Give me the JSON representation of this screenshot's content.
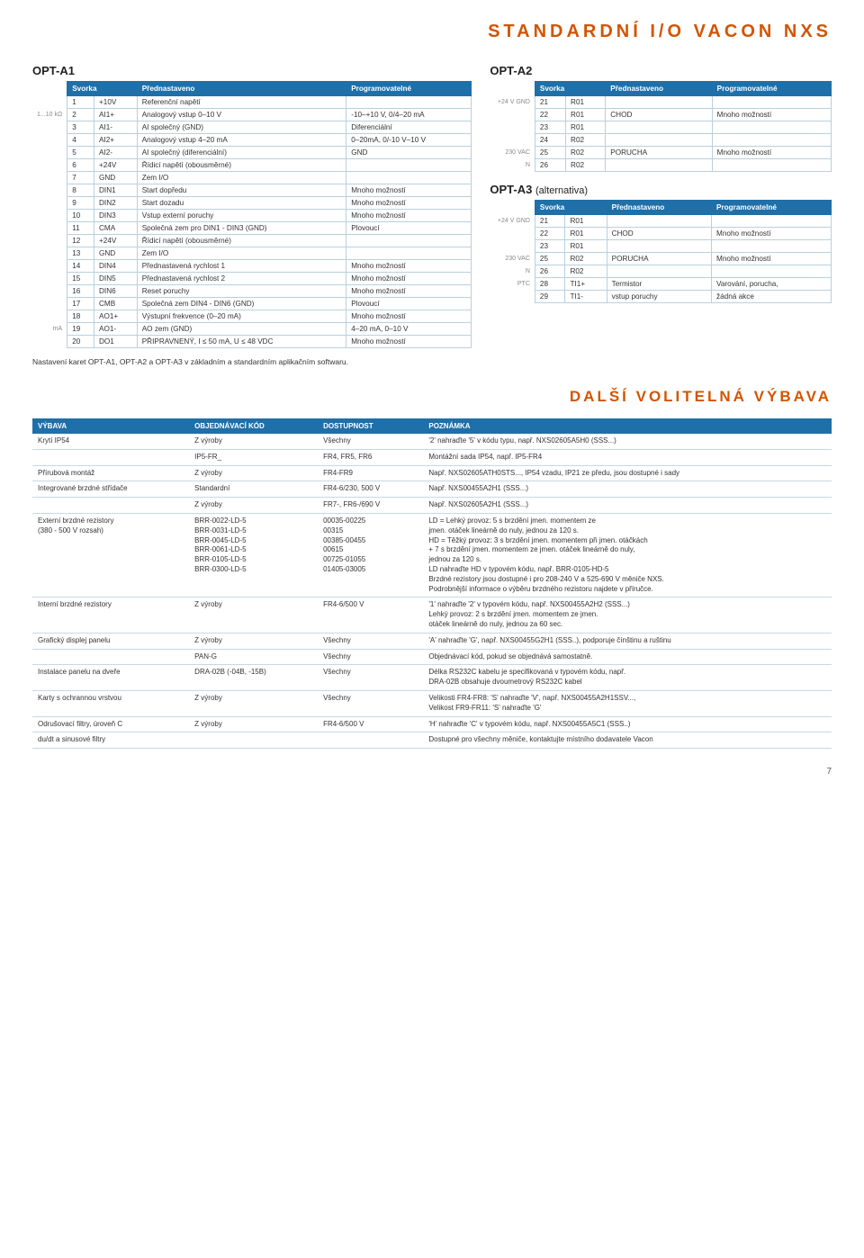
{
  "page_title": "STANDARDNÍ I/O VACON NXS",
  "note": "Nastavení karet OPT-A1, OPT-A2 a OPT-A3 v základním a standardním aplikačním softwaru.",
  "section2_title": "DALŠÍ VOLITELNÁ VÝBAVA",
  "page_number": "7",
  "colors": {
    "accent": "#d35400",
    "header_bg": "#1f6fa8",
    "border": "#b9d0de"
  },
  "opt_a1": {
    "label": "OPT-A1",
    "side_note_1": "1...10 kΩ",
    "side_note_2": "mA",
    "headers": [
      "Svorka",
      "Přednastaveno",
      "Programovatelné"
    ],
    "rows": [
      [
        "1",
        "+10V",
        "Referenční napětí",
        ""
      ],
      [
        "2",
        "AI1+",
        "Analogový vstup 0–10 V",
        "-10–+10 V, 0/4–20 mA"
      ],
      [
        "3",
        "AI1-",
        "AI společný (GND)",
        "Diferenciální"
      ],
      [
        "4",
        "AI2+",
        "Analogový vstup 4–20 mA",
        "0–20mA, 0/-10 V–10 V"
      ],
      [
        "5",
        "AI2-",
        "AI společný (diferenciální)",
        "GND"
      ],
      [
        "6",
        "+24V",
        "Řídicí napětí (obousměrné)",
        ""
      ],
      [
        "7",
        "GND",
        "Zem I/O",
        ""
      ],
      [
        "8",
        "DIN1",
        "Start dopředu",
        "Mnoho možností"
      ],
      [
        "9",
        "DIN2",
        "Start dozadu",
        "Mnoho možností"
      ],
      [
        "10",
        "DIN3",
        "Vstup externí poruchy",
        "Mnoho možností"
      ],
      [
        "11",
        "CMA",
        "Společná zem pro DIN1 - DIN3 (GND)",
        "Plovoucí"
      ],
      [
        "12",
        "+24V",
        "Řídicí napětí (obousměrné)",
        ""
      ],
      [
        "13",
        "GND",
        "Zem I/O",
        ""
      ],
      [
        "14",
        "DIN4",
        "Přednastavená rychlost 1",
        "Mnoho možností"
      ],
      [
        "15",
        "DIN5",
        "Přednastavená rychlost 2",
        "Mnoho možností"
      ],
      [
        "16",
        "DIN6",
        "Reset poruchy",
        "Mnoho možností"
      ],
      [
        "17",
        "CMB",
        "Společná zem DIN4 - DIN6 (GND)",
        "Plovoucí"
      ],
      [
        "18",
        "AO1+",
        "Výstupní frekvence (0–20 mA)",
        "Mnoho možností"
      ],
      [
        "19",
        "AO1-",
        "AO zem (GND)",
        "4–20 mA, 0–10 V"
      ],
      [
        "20",
        "DO1",
        "PŘIPRAVNENÝ, I ≤ 50 mA, U ≤ 48 VDC",
        "Mnoho možností"
      ]
    ]
  },
  "opt_a2": {
    "label": "OPT-A2",
    "conn1": "+24 V  GND",
    "conn2": "230 VAC",
    "conn3": "N",
    "headers": [
      "Svorka",
      "Přednastaveno",
      "Programovatelné"
    ],
    "rows": [
      [
        "21",
        "R01",
        "",
        ""
      ],
      [
        "22",
        "R01",
        "CHOD",
        "Mnoho možností"
      ],
      [
        "23",
        "R01",
        "",
        ""
      ],
      [
        "24",
        "R02",
        "",
        ""
      ],
      [
        "25",
        "R02",
        "PORUCHA",
        "Mnoho možností"
      ],
      [
        "26",
        "R02",
        "",
        ""
      ]
    ]
  },
  "opt_a3": {
    "label": "OPT-A3",
    "alt": "(alternativa)",
    "conn1": "+24 V  GND",
    "conn2": "230 VAC",
    "conn3": "N",
    "conn4": "PTC",
    "headers": [
      "Svorka",
      "Přednastaveno",
      "Programovatelné"
    ],
    "rows": [
      [
        "21",
        "R01",
        "",
        ""
      ],
      [
        "22",
        "R01",
        "CHOD",
        "Mnoho možností"
      ],
      [
        "23",
        "R01",
        "",
        ""
      ],
      [
        "25",
        "R02",
        "PORUCHA",
        "Mnoho možností"
      ],
      [
        "26",
        "R02",
        "",
        ""
      ],
      [
        "28",
        "TI1+",
        "Termistor",
        "Varování, porucha,"
      ],
      [
        "29",
        "TI1-",
        "vstup poruchy",
        "žádná akce"
      ]
    ]
  },
  "accessories": {
    "headers": [
      "VÝBAVA",
      "OBJEDNÁVACÍ KÓD",
      "DOSTUPNOST",
      "POZNÁMKA"
    ],
    "rows": [
      [
        "Krytí IP54",
        "Z výroby",
        "Všechny",
        "'2' nahraďte '5' v kódu typu, např. NXS02605A5H0 (SSS...)"
      ],
      [
        "",
        "IP5-FR_",
        "FR4, FR5, FR6",
        "Montážní sada IP54, např. IP5-FR4"
      ],
      [
        "Přírubová montáž",
        "Z výroby",
        "FR4-FR9",
        "Např.  NXS02605ATH0STS..., IP54 vzadu, IP21 ze předu, jsou dostupné i sady"
      ],
      [
        "Integrované brzdné střídače",
        "Standardní",
        "FR4-6/230, 500 V",
        "Např. NXS00455A2H1 (SSS...)"
      ],
      [
        "",
        "Z výroby",
        "FR7-, FR6-/690 V",
        "Např. NXS02605A2H1 (SSS...)"
      ],
      [
        "Externí brzdné rezistory\n(380 - 500 V rozsah)",
        "BRR-0022-LD-5\nBRR-0031-LD-5\nBRR-0045-LD-5\nBRR-0061-LD-5\nBRR-0105-LD-5\nBRR-0300-LD-5",
        "00035-00225\n00315\n00385-00455\n00615\n00725-01055\n01405-03005",
        "LD = Lehký provoz:  5 s brzdění jmen. momentem ze\n   jmen. otáček lineárně do nuly, jednou za 120 s.\nHD = Těžký provoz: 3 s brzdění jmen. momentem při jmen. otáčkách\n   + 7 s brzdění jmen. momentem ze jmen. otáček lineárně do nuly,\n   jednou za 120 s.\nLD nahraďte HD v typovém kódu, např. BRR-0105-HD-5\nBrzdné rezistory jsou dostupné i pro 208-240 V a 525-690 V měniče NXS.\nPodrobnější informace o výběru brzdného rezistoru najdete v příručce."
      ],
      [
        "Interní brzdné rezistory",
        "Z výroby",
        "FR4-6/500 V",
        "'1' nahraďte '2' v typovém kódu, např. NXS00455A2H2 (SSS...)\nLehký provoz:  2 s brzdění jmen. momentem ze jmen.\n   otáček lineárně do nuly, jednou za 60 sec."
      ],
      [
        "Grafický displej panelu",
        "Z výroby",
        "Všechny",
        "'A' nahraďte 'G', např. NXS00455G2H1 (SSS..), podporuje čínštinu a ruštinu"
      ],
      [
        "",
        "PAN-G",
        "Všechny",
        "Objednávací kód, pokud se objednává samostatně."
      ],
      [
        "Instalace panelu na dveře",
        "DRA-02B (-04B, -15B)",
        "Všechny",
        "Délka RS232C kabelu je specifikovaná v typovém kódu, např.\nDRA-02B obsahuje dvoumetrový RS232C kabel"
      ],
      [
        "Karty s ochrannou vrstvou",
        "Z výroby",
        "Všechny",
        "Velikosti FR4-FR8:  'S' nahraďte 'V', např. NXS00455A2H1SSV...,\n   Velikost FR9-FR11:  'S' nahraďte 'G'"
      ],
      [
        "Odrušovací filtry, úroveň C",
        "Z výroby",
        "FR4-6/500 V",
        "'H' nahraďte 'C' v typovém kódu, např. NXS00455A5C1 (SSS..)"
      ],
      [
        "du/dt a sinusové filtry",
        "",
        "",
        "Dostupné pro všechny měniče, kontaktujte místního dodavatele Vacon"
      ]
    ]
  }
}
